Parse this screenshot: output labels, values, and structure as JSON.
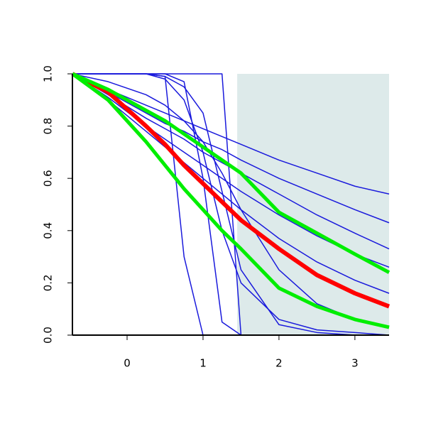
{
  "chart_data": {
    "type": "line",
    "x": [
      -0.72,
      -0.25,
      0.25,
      0.5,
      0.75,
      1,
      1.25,
      1.5,
      2,
      2.5,
      3,
      3.45
    ],
    "xlim": [
      -0.72,
      3.45
    ],
    "ylim": [
      0,
      1
    ],
    "xticks": [
      0,
      1,
      2,
      3
    ],
    "yticks": [
      {
        "value": 0,
        "label": "0.0"
      },
      {
        "value": 0.2,
        "label": "0.2"
      },
      {
        "value": 0.4,
        "label": "0.4"
      },
      {
        "value": 0.6,
        "label": "0.6"
      },
      {
        "value": 0.8,
        "label": "0.8"
      },
      {
        "value": 1,
        "label": "1.0"
      }
    ],
    "shaded_region": [
      1.45,
      3.45
    ],
    "shade_color": "#ddeaea",
    "series": [
      {
        "color": "#1a1adc",
        "width": 1.5,
        "values": [
          1,
          0.94,
          0.88,
          0.85,
          0.82,
          0.79,
          0.76,
          0.73,
          0.67,
          0.62,
          0.57,
          0.54
        ]
      },
      {
        "color": "#1a1adc",
        "width": 1.5,
        "values": [
          1,
          0.93,
          0.85,
          0.81,
          0.78,
          0.74,
          0.71,
          0.67,
          0.6,
          0.54,
          0.48,
          0.43
        ]
      },
      {
        "color": "#1a1adc",
        "width": 1.5,
        "values": [
          1,
          0.92,
          0.83,
          0.79,
          0.75,
          0.7,
          0.66,
          0.62,
          0.54,
          0.46,
          0.39,
          0.33
        ]
      },
      {
        "color": "#1a1adc",
        "width": 1.5,
        "values": [
          1,
          0.91,
          0.8,
          0.75,
          0.7,
          0.65,
          0.6,
          0.55,
          0.46,
          0.38,
          0.31,
          0.26
        ]
      },
      {
        "color": "#1a1adc",
        "width": 1.5,
        "values": [
          1,
          0.9,
          0.78,
          0.72,
          0.66,
          0.6,
          0.54,
          0.48,
          0.37,
          0.28,
          0.21,
          0.16
        ]
      },
      {
        "color": "#1a1adc",
        "width": 1.5,
        "values": [
          1,
          1,
          1,
          0.99,
          0.3,
          0,
          0,
          0,
          0,
          0,
          0,
          0
        ]
      },
      {
        "color": "#1a1adc",
        "width": 1.5,
        "values": [
          1,
          1,
          1,
          1,
          0.97,
          0.6,
          0.05,
          0,
          0,
          0,
          0,
          0
        ]
      },
      {
        "color": "#1a1adc",
        "width": 1.5,
        "values": [
          1,
          1,
          1,
          0.99,
          0.95,
          0.85,
          0.55,
          0.25,
          0.04,
          0.01,
          0,
          0
        ]
      },
      {
        "color": "#1a1adc",
        "width": 1.5,
        "values": [
          1,
          0.97,
          0.92,
          0.88,
          0.82,
          0.74,
          0.62,
          0.48,
          0.25,
          0.12,
          0.06,
          0.03
        ]
      },
      {
        "color": "#1a1adc",
        "width": 1.5,
        "values": [
          1,
          1,
          1,
          1,
          1,
          1,
          1,
          0,
          0,
          0,
          0,
          0
        ]
      },
      {
        "color": "#1a1adc",
        "width": 1.5,
        "values": [
          1,
          1,
          1,
          0.98,
          0.9,
          0.7,
          0.4,
          0.2,
          0.06,
          0.02,
          0.01,
          0
        ]
      },
      {
        "color": "#ff0000",
        "width": 6,
        "values": [
          1,
          0.93,
          0.8,
          0.73,
          0.65,
          0.58,
          0.51,
          0.44,
          0.33,
          0.23,
          0.16,
          0.11
        ]
      },
      {
        "color": "#00ee00",
        "width": 5,
        "values": [
          1,
          0.94,
          0.86,
          0.82,
          0.77,
          0.72,
          0.67,
          0.62,
          0.47,
          0.39,
          0.31,
          0.24
        ]
      },
      {
        "color": "#00ee00",
        "width": 5,
        "values": [
          1,
          0.9,
          0.74,
          0.65,
          0.56,
          0.48,
          0.4,
          0.33,
          0.18,
          0.11,
          0.06,
          0.03
        ]
      }
    ]
  }
}
